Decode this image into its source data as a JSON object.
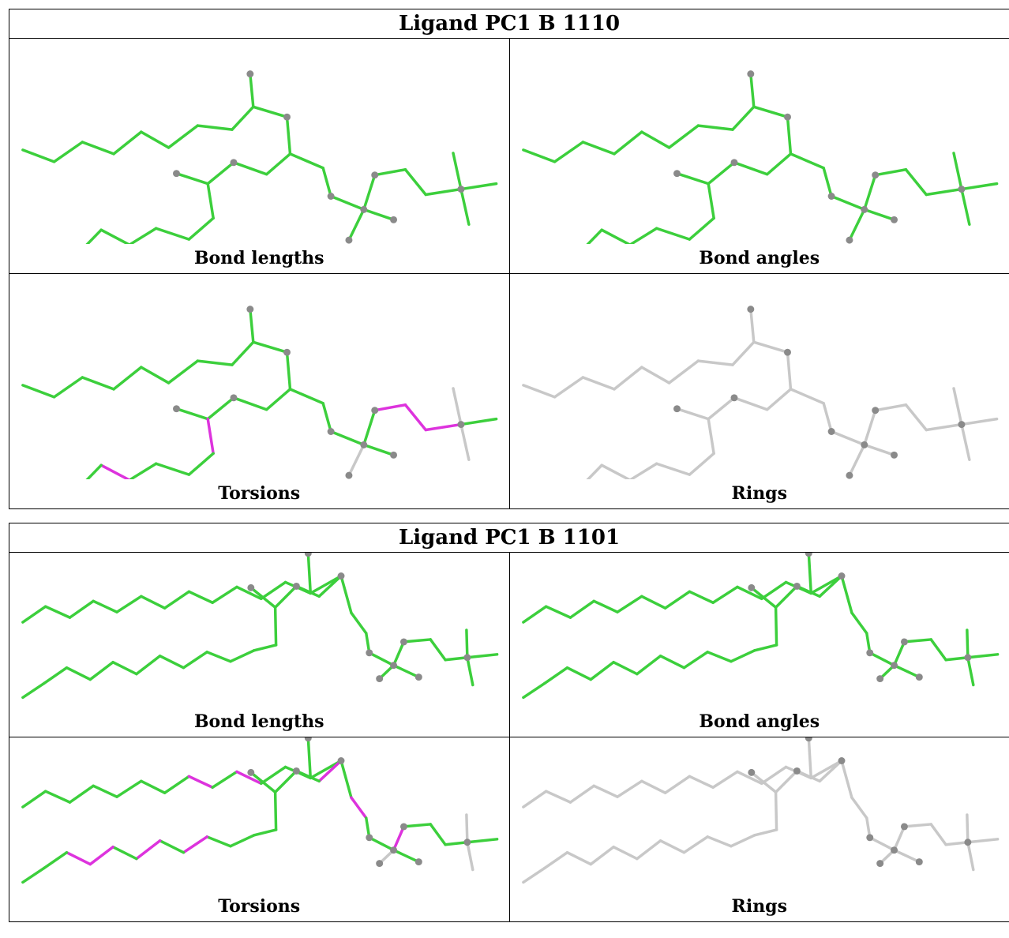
{
  "colors": {
    "green": "#3ccf3c",
    "magenta": "#dd33dd",
    "grey": "#c8c8c8",
    "atom": "#8a8a8a"
  },
  "ligands": [
    {
      "title": "Ligand PC1 B 1110",
      "panels": [
        {
          "label": "Bond lengths",
          "mode": "green"
        },
        {
          "label": "Bond angles",
          "mode": "green"
        },
        {
          "label": "Torsions",
          "mode": "torsion"
        },
        {
          "label": "Rings",
          "mode": "grey"
        }
      ]
    },
    {
      "title": "Ligand PC1 B 1101",
      "panels": [
        {
          "label": "Bond lengths",
          "mode": "green"
        },
        {
          "label": "Bond angles",
          "mode": "green"
        },
        {
          "label": "Torsions",
          "mode": "torsion"
        },
        {
          "label": "Rings",
          "mode": "grey"
        }
      ]
    }
  ]
}
